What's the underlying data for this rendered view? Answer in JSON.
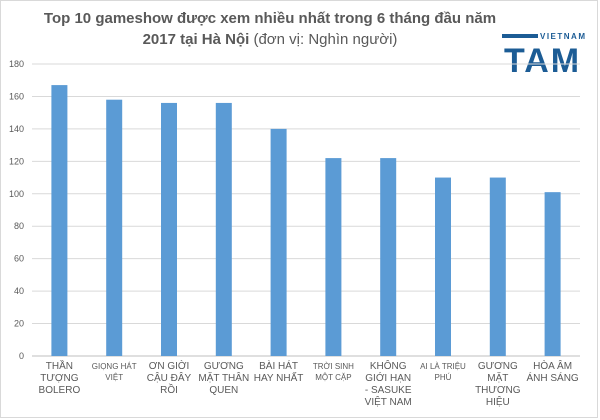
{
  "colors": {
    "bar": "#5b9bd5",
    "grid": "#d9d9d9",
    "text": "#595959",
    "logo": "#1c5c95"
  },
  "logo": {
    "top": "VIETNAM",
    "main": "TAM"
  },
  "chart_data": {
    "type": "bar",
    "title_bold": "Top 10 gameshow được xem nhiều nhất trong 6 tháng đầu năm 2017 tại Hà Nội",
    "title_unit": "(đơn vị: Nghìn người)",
    "xlabel": "",
    "ylabel": "",
    "ylim": [
      0,
      180
    ],
    "yticks": [
      0,
      20,
      40,
      60,
      80,
      100,
      120,
      140,
      160,
      180
    ],
    "grid": true,
    "legend": "none",
    "categories": [
      [
        "THẦN",
        "TƯỢNG",
        "BOLERO"
      ],
      [
        "GIỌNG HÁT",
        "VIỆT"
      ],
      [
        "ƠN GIỜI",
        "CẬU ĐÂY",
        "RỒI"
      ],
      [
        "GƯƠNG",
        "MẶT THÂN",
        "QUEN"
      ],
      [
        "BÀI HÁT",
        "HAY NHẤT"
      ],
      [
        "TRỜI SINH",
        "MỘT CẶP"
      ],
      [
        "KHÔNG",
        "GIỚI HẠN",
        "- SASUKE",
        "VIỆT NAM"
      ],
      [
        "AI LÀ TRIỆU",
        "PHÚ"
      ],
      [
        "GƯƠNG",
        "MẶT",
        "THƯƠNG",
        "HIỆU"
      ],
      [
        "HÒA ÂM",
        "ÁNH SÁNG"
      ]
    ],
    "values": [
      167,
      158,
      156,
      156,
      140,
      122,
      122,
      110,
      110,
      101
    ]
  }
}
